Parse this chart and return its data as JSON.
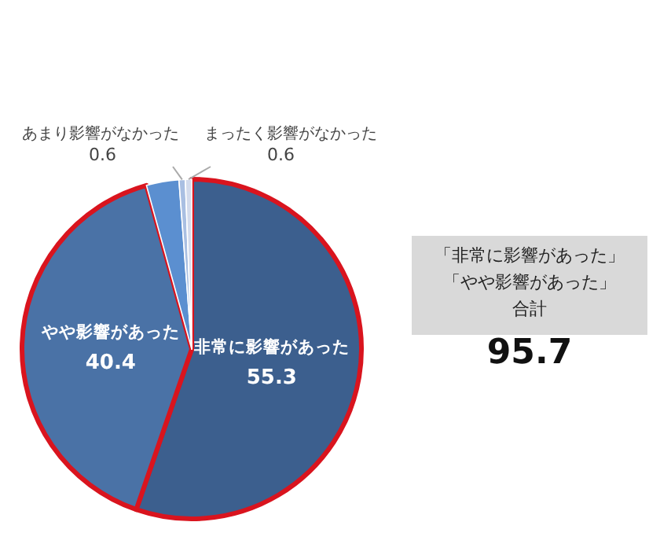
{
  "chart_data": {
    "type": "pie",
    "categories": [
      "非常に影響があった",
      "やや影響があった",
      null,
      "あまり影響がなかった",
      "まったく影響がなかった"
    ],
    "values": [
      55.3,
      40.4,
      3.1,
      0.6,
      0.6
    ],
    "value_labels": [
      "55.3",
      "40.4",
      null,
      "0.6",
      "0.6"
    ],
    "colors": [
      "#3c5f8e",
      "#4a72a6",
      "#5b8fd0",
      "#a9bfe2",
      "#d3dbec"
    ],
    "annotations": [
      "「非常に影響があった」",
      "「やや影響があった」",
      "合計",
      "95.7"
    ]
  }
}
